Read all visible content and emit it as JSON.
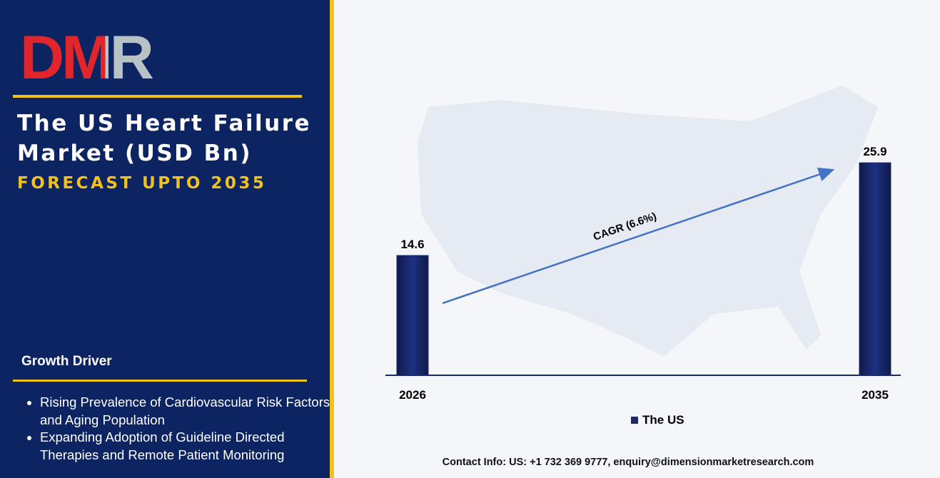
{
  "logo": "DMR",
  "title": "The US Heart Failure Market (USD Bn)",
  "subtitle": "FORECAST UPTO 2035",
  "growth_driver": {
    "heading": "Growth Driver",
    "items": [
      "Rising Prevalence of Cardiovascular Risk Factors and Aging Population",
      "Expanding Adoption of Guideline Directed Therapies and Remote Patient Monitoring"
    ]
  },
  "contact": "Contact Info: US: +1 732 369 9777, enquiry@dimensionmarketresearch.com",
  "chart_data": {
    "type": "bar",
    "categories": [
      "2026",
      "2035"
    ],
    "series": [
      {
        "name": "The US",
        "color": "#1b2a6b",
        "values": [
          14.6,
          25.9
        ]
      }
    ],
    "annotation": "CAGR (6.6%)",
    "ylim": [
      0,
      28
    ]
  }
}
